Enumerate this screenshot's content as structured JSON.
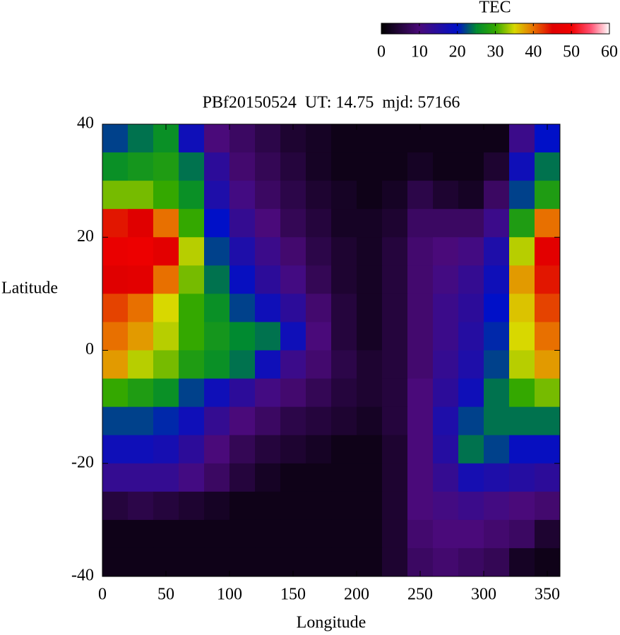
{
  "chart_data": {
    "type": "heatmap",
    "title": "PBf20150524  UT: 14.75  mjd: 57166",
    "x_label": "Longitude",
    "y_label": "Latitude",
    "x": [
      10,
      30,
      50,
      70,
      90,
      110,
      130,
      150,
      170,
      190,
      210,
      230,
      250,
      270,
      290,
      310,
      330,
      350
    ],
    "y": [
      37.5,
      32.5,
      27.5,
      22.5,
      17.5,
      12.5,
      7.5,
      2.5,
      -2.5,
      -7.5,
      -12.5,
      -17.5,
      -22.5,
      -27.5,
      -32.5,
      -37.5
    ],
    "z": [
      [
        22,
        24,
        26,
        18,
        10,
        8,
        6,
        4,
        3,
        2,
        2,
        2,
        2,
        2,
        2,
        2,
        12,
        20
      ],
      [
        26,
        27,
        28,
        24,
        14,
        9,
        7,
        5,
        3,
        2,
        2,
        2,
        3,
        2,
        2,
        4,
        18,
        24
      ],
      [
        32,
        32,
        30,
        26,
        16,
        11,
        8,
        6,
        4,
        3,
        2,
        3,
        6,
        4,
        3,
        8,
        22,
        28
      ],
      [
        44,
        45,
        40,
        30,
        20,
        13,
        10,
        7,
        5,
        3,
        3,
        4,
        8,
        8,
        8,
        12,
        28,
        40
      ],
      [
        48,
        49,
        46,
        34,
        22,
        16,
        12,
        9,
        6,
        4,
        3,
        5,
        9,
        10,
        11,
        16,
        34,
        46
      ],
      [
        45,
        46,
        40,
        32,
        24,
        19,
        14,
        11,
        7,
        4,
        3,
        5,
        9,
        11,
        13,
        18,
        38,
        44
      ],
      [
        42,
        40,
        35,
        30,
        26,
        22,
        18,
        14,
        9,
        5,
        3,
        5,
        9,
        12,
        14,
        20,
        36,
        42
      ],
      [
        40,
        38,
        34,
        30,
        27,
        25,
        24,
        18,
        10,
        5,
        3,
        5,
        9,
        12,
        15,
        21,
        35,
        40
      ],
      [
        38,
        34,
        32,
        28,
        26,
        24,
        18,
        12,
        9,
        6,
        4,
        5,
        9,
        13,
        16,
        22,
        34,
        38
      ],
      [
        30,
        28,
        26,
        22,
        18,
        14,
        11,
        9,
        7,
        5,
        4,
        5,
        10,
        14,
        18,
        24,
        30,
        32
      ],
      [
        22,
        22,
        21,
        18,
        13,
        10,
        8,
        6,
        5,
        4,
        3,
        5,
        10,
        16,
        22,
        24,
        24,
        24
      ],
      [
        18,
        18,
        17,
        14,
        10,
        7,
        5,
        4,
        3,
        2,
        2,
        4,
        10,
        15,
        24,
        22,
        19,
        19
      ],
      [
        13,
        13,
        13,
        11,
        8,
        5,
        3,
        2,
        2,
        2,
        2,
        4,
        10,
        13,
        17,
        16,
        15,
        14
      ],
      [
        5,
        6,
        5,
        4,
        3,
        2,
        2,
        2,
        2,
        2,
        2,
        4,
        10,
        11,
        12,
        11,
        10,
        9
      ],
      [
        2,
        2,
        2,
        2,
        2,
        2,
        2,
        2,
        2,
        2,
        2,
        4,
        9,
        10,
        10,
        9,
        8,
        4
      ],
      [
        2,
        2,
        2,
        2,
        2,
        2,
        2,
        2,
        2,
        2,
        2,
        4,
        8,
        9,
        8,
        7,
        3,
        2
      ]
    ],
    "xlim": [
      0,
      360
    ],
    "ylim": [
      -40,
      40
    ],
    "xticks": [
      0,
      50,
      100,
      150,
      200,
      250,
      300,
      350
    ],
    "yticks": [
      -40,
      -20,
      0,
      20,
      40
    ],
    "colorbar": {
      "label": "TEC",
      "lim": [
        0,
        60
      ],
      "ticks": [
        0,
        10,
        20,
        30,
        40,
        50,
        60
      ],
      "colormap": [
        {
          "value": 0,
          "color": "#000000"
        },
        {
          "value": 10,
          "color": "#4a0a7a"
        },
        {
          "value": 20,
          "color": "#0010c8"
        },
        {
          "value": 25,
          "color": "#008a30"
        },
        {
          "value": 30,
          "color": "#34a800"
        },
        {
          "value": 35,
          "color": "#d8d800"
        },
        {
          "value": 40,
          "color": "#e87000"
        },
        {
          "value": 45,
          "color": "#e00000"
        },
        {
          "value": 50,
          "color": "#f00000"
        },
        {
          "value": 55,
          "color": "#ff5070"
        },
        {
          "value": 60,
          "color": "#ffffff"
        }
      ]
    }
  }
}
